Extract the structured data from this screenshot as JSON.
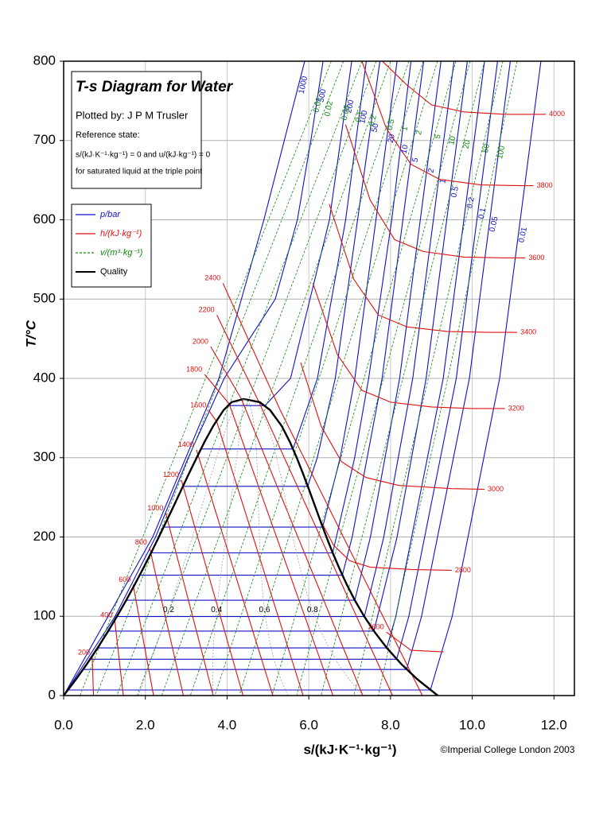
{
  "chart_data": {
    "type": "line",
    "title": "T-s Diagram for Water",
    "subtitle": "Plotted by: J P M Trusler",
    "notes": [
      "Reference state:",
      "s/(kJ·K⁻¹·kg⁻¹) = 0 and u/(kJ·kg⁻¹) = 0",
      "for saturated liquid at the triple point"
    ],
    "x_label": "s/(kJ·K⁻¹·kg⁻¹)",
    "y_label": "T/°C",
    "credit": "©Imperial College London 2003",
    "xlim": [
      0,
      12.5
    ],
    "ylim": [
      0,
      800
    ],
    "xticks": [
      {
        "value": 0,
        "label": "0.0"
      },
      {
        "value": 2,
        "label": "2.0"
      },
      {
        "value": 4,
        "label": "4.0"
      },
      {
        "value": 6,
        "label": "6.0"
      },
      {
        "value": 8,
        "label": "8.0"
      },
      {
        "value": 10,
        "label": "10.0"
      },
      {
        "value": 12,
        "label": "12.0"
      }
    ],
    "yticks": [
      0,
      100,
      200,
      300,
      400,
      500,
      600,
      700,
      800
    ],
    "grid": true,
    "legend": "upper left",
    "series": [
      {
        "name": "p/bar",
        "color": "#1010c8",
        "curves": [
          {
            "label": "1000",
            "x": [
              0,
              2.18,
              3.8,
              4.9,
              5.9
            ],
            "y": [
              0.01,
              200,
              400,
              600,
              800
            ]
          },
          {
            "label": "500",
            "x": [
              0,
              1.26,
              2.25,
              3.05,
              3.93,
              4.55,
              5.18,
              5.72,
              6.05,
              6.35
            ],
            "y": [
              0.01,
              100,
              200,
              300,
              400,
              450,
              500,
              600,
              700,
              800
            ]
          },
          {
            "label": "200",
            "x": [
              4.015,
              4.927,
              5.553,
              6.506,
              7.05
            ],
            "y": [
              365.7,
              365.7,
              400,
              600,
              800
            ]
          },
          {
            "label": "100",
            "x": [
              3.36,
              5.614,
              6.212,
              6.903,
              7.406
            ],
            "y": [
              311,
              311,
              400,
              600,
              800
            ]
          },
          {
            "label": "50",
            "x": [
              2.921,
              5.973,
              6.208,
              6.647,
              7.74
            ],
            "y": [
              263.9,
              263.9,
              300,
              400,
              800
            ]
          },
          {
            "label": "20",
            "x": [
              2.447,
              6.34,
              6.768,
              7.127,
              8.16
            ],
            "y": [
              212.4,
              212.4,
              300,
              400,
              800
            ]
          },
          {
            "label": "10",
            "x": [
              2.138,
              6.585,
              7.123,
              7.465,
              8.029,
              8.5
            ],
            "y": [
              179.9,
              179.9,
              300,
              400,
              600,
              800
            ]
          },
          {
            "label": "5",
            "x": [
              1.861,
              6.821,
              7.061,
              7.794,
              8.81
            ],
            "y": [
              151.8,
              151.8,
              200,
              400,
              800
            ]
          },
          {
            "label": "2",
            "x": [
              1.53,
              7.127,
              7.507,
              8.222,
              9.235
            ],
            "y": [
              120.2,
              120.2,
              200,
              400,
              800
            ]
          },
          {
            "label": "1",
            "x": [
              1.303,
              7.359,
              7.834,
              8.544,
              9.555
            ],
            "y": [
              99.6,
              99.6,
              200,
              400,
              800
            ]
          },
          {
            "label": "0.5",
            "x": [
              1.091,
              7.593,
              8.16,
              8.87,
              9.88
            ],
            "y": [
              81.3,
              81.3,
              200,
              400,
              800
            ]
          },
          {
            "label": "0.2",
            "x": [
              0.832,
              7.907,
              8.13,
              9.29,
              10.3
            ],
            "y": [
              60.1,
              60.1,
              100,
              400,
              800
            ]
          },
          {
            "label": "0.1",
            "x": [
              0.649,
              8.149,
              8.449,
              9.608,
              10.62
            ],
            "y": [
              45.8,
              45.8,
              100,
              400,
              800
            ]
          },
          {
            "label": "0.05",
            "x": [
              0.476,
              8.394,
              8.76,
              9.93,
              10.93
            ],
            "y": [
              32.9,
              32.9,
              100,
              400,
              800
            ]
          },
          {
            "label": "0.01",
            "x": [
              0.106,
              8.975,
              9.51,
              10.67,
              11.68
            ],
            "y": [
              7,
              7,
              100,
              400,
              800
            ]
          }
        ]
      },
      {
        "name": "h/(kJ·kg⁻¹)",
        "color": "#e01010",
        "curves": [
          {
            "label": "200",
            "x": [
              0.7,
              0.73
            ],
            "y": [
              48,
              0.01
            ]
          },
          {
            "label": "400",
            "x": [
              1.25,
              1.46
            ],
            "y": [
              95,
              0.01
            ]
          },
          {
            "label": "600",
            "x": [
              1.7,
              2.2
            ],
            "y": [
              140,
              0.01
            ]
          },
          {
            "label": "800",
            "x": [
              2.1,
              2.93
            ],
            "y": [
              187,
              0.01
            ]
          },
          {
            "label": "1000",
            "x": [
              2.5,
              3.66
            ],
            "y": [
              230,
              0.01
            ]
          },
          {
            "label": "1200",
            "x": [
              2.88,
              4.39
            ],
            "y": [
              272,
              0.01
            ]
          },
          {
            "label": "1400",
            "x": [
              3.25,
              5.12
            ],
            "y": [
              310,
              0.01
            ]
          },
          {
            "label": "1600",
            "x": [
              3.55,
              3.75,
              5.86
            ],
            "y": [
              360,
              345,
              0.01
            ]
          },
          {
            "label": "1800",
            "x": [
              3.45,
              4.05,
              6.59
            ],
            "y": [
              405,
              368,
              0.01
            ]
          },
          {
            "label": "2000",
            "x": [
              3.6,
              4.35,
              7.32
            ],
            "y": [
              440,
              374,
              0.01
            ]
          },
          {
            "label": "2200",
            "x": [
              3.75,
              4.8,
              8.05
            ],
            "y": [
              480,
              368,
              0.01
            ]
          },
          {
            "label": "2400",
            "x": [
              3.9,
              5.3,
              8.78
            ],
            "y": [
              520,
              360,
              0.01
            ]
          },
          {
            "label": "2600",
            "x": [
              7.9,
              8.5,
              9.3
            ],
            "y": [
              80,
              57,
              55
            ]
          },
          {
            "label": "2800",
            "x": [
              6.25,
              6.6,
              7.0,
              7.5,
              8.5,
              9.5
            ],
            "y": [
              225,
              190,
              170,
              162,
              159,
              158
            ]
          },
          {
            "label": "3000",
            "x": [
              5.8,
              6.3,
              6.8,
              7.4,
              8.2,
              9.5,
              10.3
            ],
            "y": [
              420,
              340,
              295,
              275,
              265,
              261,
              260
            ]
          },
          {
            "label": "3200",
            "x": [
              6.1,
              6.7,
              7.3,
              8.0,
              9.0,
              10.0,
              10.8
            ],
            "y": [
              520,
              430,
              385,
              370,
              364,
              362,
              362
            ]
          },
          {
            "label": "3400",
            "x": [
              6.5,
              7.1,
              7.7,
              8.4,
              9.4,
              10.4,
              11.1
            ],
            "y": [
              620,
              525,
              480,
              465,
              459,
              458,
              458
            ]
          },
          {
            "label": "3600",
            "x": [
              6.9,
              7.5,
              8.1,
              8.8,
              9.8,
              10.8,
              11.3
            ],
            "y": [
              720,
              625,
              575,
              560,
              553,
              552,
              552
            ]
          },
          {
            "label": "3800",
            "x": [
              7.3,
              7.9,
              8.5,
              9.2,
              10.2,
              11.2,
              11.5
            ],
            "y": [
              800,
              715,
              670,
              651,
              644,
              643,
              643
            ]
          },
          {
            "label": "4000",
            "x": [
              7.8,
              8.4,
              9.0,
              9.8,
              10.8,
              11.8
            ],
            "y": [
              800,
              770,
              745,
              736,
              733,
              733
            ]
          }
        ]
      },
      {
        "name": "v/(m³·kg⁻¹)",
        "color": "#108a10",
        "dash": true,
        "curves": [
          {
            "label": "0.01",
            "x": [
              6.55,
              0.4
            ],
            "y": [
              800,
              0.01
            ]
          },
          {
            "label": "0.02",
            "x": [
              6.85,
              0.8
            ],
            "y": [
              800,
              0.01
            ]
          },
          {
            "label": "0.05",
            "x": [
              7.3,
              1.3
            ],
            "y": [
              800,
              0.01
            ]
          },
          {
            "label": "0.1",
            "x": [
              7.65,
              1.8
            ],
            "y": [
              800,
              0.01
            ]
          },
          {
            "label": "0.2",
            "x": [
              8.0,
              2.4
            ],
            "y": [
              800,
              0.01
            ]
          },
          {
            "label": "0.5",
            "x": [
              8.45,
              3.1
            ],
            "y": [
              800,
              0.01
            ]
          },
          {
            "label": "1",
            "x": [
              8.8,
              3.7
            ],
            "y": [
              800,
              0.01
            ]
          },
          {
            "label": "2",
            "x": [
              9.15,
              4.3
            ],
            "y": [
              800,
              0.01
            ]
          },
          {
            "label": "5",
            "x": [
              9.6,
              5.1
            ],
            "y": [
              800,
              0.01
            ]
          },
          {
            "label": "10",
            "x": [
              9.95,
              5.7
            ],
            "y": [
              800,
              0.01
            ]
          },
          {
            "label": "20",
            "x": [
              10.3,
              6.3
            ],
            "y": [
              800,
              0.01
            ]
          },
          {
            "label": "50",
            "x": [
              10.75,
              7.1
            ],
            "y": [
              800,
              0.01
            ]
          },
          {
            "label": "100",
            "x": [
              11.1,
              7.7
            ],
            "y": [
              800,
              0.01
            ]
          }
        ]
      },
      {
        "name": "Quality",
        "color": "#000000",
        "x": [
          0,
          0.296,
          0.572,
          0.831,
          1.075,
          1.307,
          1.528,
          1.739,
          1.943,
          2.139,
          2.331,
          2.518,
          2.702,
          2.884,
          3.067,
          3.255,
          3.449,
          3.66,
          3.916,
          4.111,
          4.407,
          4.8,
          5.053,
          5.336,
          5.536,
          5.705,
          5.857,
          6.002,
          6.144,
          6.285,
          6.431,
          6.585,
          6.75,
          6.93,
          7.129,
          7.354,
          7.612,
          7.909,
          8.257,
          8.666,
          9.155
        ],
        "y": [
          0.01,
          20,
          40,
          60,
          80,
          100,
          120,
          140,
          160,
          180,
          200,
          220,
          240,
          260,
          280,
          300,
          320,
          340,
          360,
          370,
          373.95,
          370,
          360,
          340,
          320,
          300,
          280,
          260,
          240,
          220,
          200,
          180,
          160,
          140,
          120,
          100,
          80,
          60,
          40,
          20,
          0.01
        ],
        "quality_levels": [
          0.2,
          0.4,
          0.6,
          0.8
        ]
      }
    ]
  }
}
